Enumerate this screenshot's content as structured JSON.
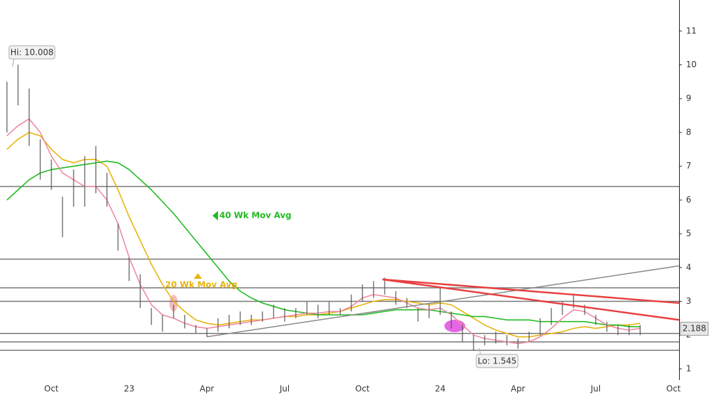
{
  "chart_data": {
    "type": "ohlc",
    "categories": [
      null,
      null,
      null,
      null,
      "Oct",
      null,
      null,
      null,
      null,
      null,
      null,
      "23",
      null,
      null,
      null,
      null,
      null,
      null,
      "Apr",
      null,
      null,
      null,
      null,
      null,
      null,
      "Jul",
      null,
      null,
      null,
      null,
      null,
      null,
      "Oct",
      null,
      null,
      null,
      null,
      null,
      null,
      "24",
      null,
      null,
      null,
      null,
      null,
      null,
      "Apr",
      null,
      null,
      null,
      null,
      null,
      null,
      "Jul",
      null,
      null,
      null,
      null,
      null,
      null,
      "Oct"
    ],
    "high": [
      9.5,
      10.008,
      9.3,
      7.8,
      7.2,
      6.1,
      6.9,
      7.3,
      7.6,
      6.8,
      5.3,
      4.3,
      3.8,
      2.8,
      2.6,
      2.9,
      2.6,
      2.3,
      2.2,
      2.5,
      2.6,
      2.7,
      2.6,
      2.7,
      2.9,
      2.8,
      2.8,
      3.0,
      2.9,
      3.0,
      2.8,
      3.2,
      3.5,
      3.6,
      3.7,
      3.3,
      3.1,
      2.8,
      2.9,
      3.4,
      2.7,
      2.3,
      2.0,
      2.0,
      2.1,
      2.0,
      1.9,
      2.1,
      2.5,
      2.8,
      3.0,
      3.2,
      2.9,
      2.6,
      2.4,
      2.3,
      2.3,
      2.3,
      null,
      null,
      null
    ],
    "low": [
      8.0,
      8.8,
      7.6,
      6.6,
      6.3,
      4.9,
      5.8,
      5.8,
      6.2,
      5.8,
      4.5,
      3.6,
      2.8,
      2.3,
      2.1,
      2.5,
      2.2,
      2.05,
      1.95,
      2.1,
      2.2,
      2.3,
      2.3,
      2.4,
      2.5,
      2.4,
      2.5,
      2.6,
      2.5,
      2.6,
      2.6,
      2.7,
      3.0,
      3.1,
      3.2,
      2.9,
      2.8,
      2.4,
      2.5,
      2.6,
      2.2,
      1.8,
      1.545,
      1.7,
      1.75,
      1.7,
      1.6,
      1.8,
      2.0,
      2.3,
      2.6,
      2.8,
      2.6,
      2.3,
      2.1,
      2.0,
      2.0,
      2.0,
      null,
      null,
      null
    ],
    "bar_color": "#555555",
    "series": [
      {
        "name": "20 Wk Mov Avg",
        "color": "#e8b40c",
        "values": [
          7.5,
          7.8,
          8.0,
          7.9,
          7.5,
          7.2,
          7.1,
          7.2,
          7.2,
          7.0,
          6.3,
          5.5,
          4.8,
          4.1,
          3.5,
          3.0,
          2.7,
          2.45,
          2.35,
          2.3,
          2.35,
          2.4,
          2.45,
          2.45,
          2.5,
          2.55,
          2.55,
          2.6,
          2.6,
          2.65,
          2.7,
          2.8,
          2.9,
          3.0,
          3.05,
          3.05,
          3.0,
          2.95,
          2.9,
          2.95,
          2.9,
          2.7,
          2.5,
          2.3,
          2.15,
          2.05,
          1.95,
          1.95,
          2.0,
          2.05,
          2.1,
          2.2,
          2.25,
          2.2,
          2.25,
          2.3,
          2.3,
          2.35,
          null,
          null,
          null
        ]
      },
      {
        "name": "40 Wk Mov Avg",
        "color": "#22bb22",
        "values": [
          6.0,
          6.3,
          6.6,
          6.8,
          6.9,
          6.95,
          7.0,
          7.05,
          7.1,
          7.15,
          7.1,
          6.9,
          6.6,
          6.3,
          5.95,
          5.6,
          5.2,
          4.8,
          4.4,
          4.0,
          3.6,
          3.3,
          3.1,
          2.95,
          2.85,
          2.75,
          2.7,
          2.65,
          2.6,
          2.6,
          2.6,
          2.6,
          2.6,
          2.65,
          2.7,
          2.75,
          2.75,
          2.75,
          2.75,
          2.7,
          2.65,
          2.6,
          2.55,
          2.55,
          2.5,
          2.45,
          2.45,
          2.45,
          2.4,
          2.4,
          2.4,
          2.4,
          2.4,
          2.35,
          2.3,
          2.3,
          2.25,
          2.25,
          null,
          null,
          null
        ]
      },
      {
        "color": "#f08aa0",
        "values": [
          7.9,
          8.2,
          8.4,
          8.0,
          7.3,
          6.8,
          6.6,
          6.4,
          6.4,
          6.0,
          5.3,
          4.3,
          3.5,
          2.9,
          2.6,
          2.5,
          2.35,
          2.25,
          2.2,
          2.25,
          2.3,
          2.35,
          2.4,
          2.45,
          2.5,
          2.55,
          2.6,
          2.65,
          2.65,
          2.7,
          2.7,
          2.85,
          3.1,
          3.2,
          3.15,
          3.1,
          2.95,
          2.8,
          2.75,
          2.8,
          2.6,
          2.3,
          2.0,
          1.9,
          1.85,
          1.8,
          1.75,
          1.8,
          1.95,
          2.2,
          2.5,
          2.75,
          2.7,
          2.5,
          2.3,
          2.2,
          2.15,
          2.2,
          null,
          null,
          null
        ]
      }
    ],
    "levels": [
      6.4,
      4.25,
      3.4,
      3.0,
      2.05,
      1.8,
      1.55
    ],
    "trendlines": [
      {
        "color": "#888888",
        "from": [
          18,
          1.95
        ],
        "to": [
          60.5,
          4.05
        ]
      },
      {
        "color": "#e84040",
        "from": [
          33.8,
          3.65
        ],
        "to": [
          60.5,
          2.95
        ]
      },
      {
        "color": "#e84040",
        "from": [
          33.8,
          3.65
        ],
        "to": [
          60.5,
          2.45
        ]
      }
    ],
    "high_label": "Hi: 10.008",
    "low_label": "Lo: 1.545",
    "last_price": 2.188,
    "ylim": [
      0.67,
      11.92
    ],
    "yticks": [
      1,
      2,
      3,
      4,
      5,
      6,
      7,
      8,
      9,
      10,
      11
    ]
  }
}
